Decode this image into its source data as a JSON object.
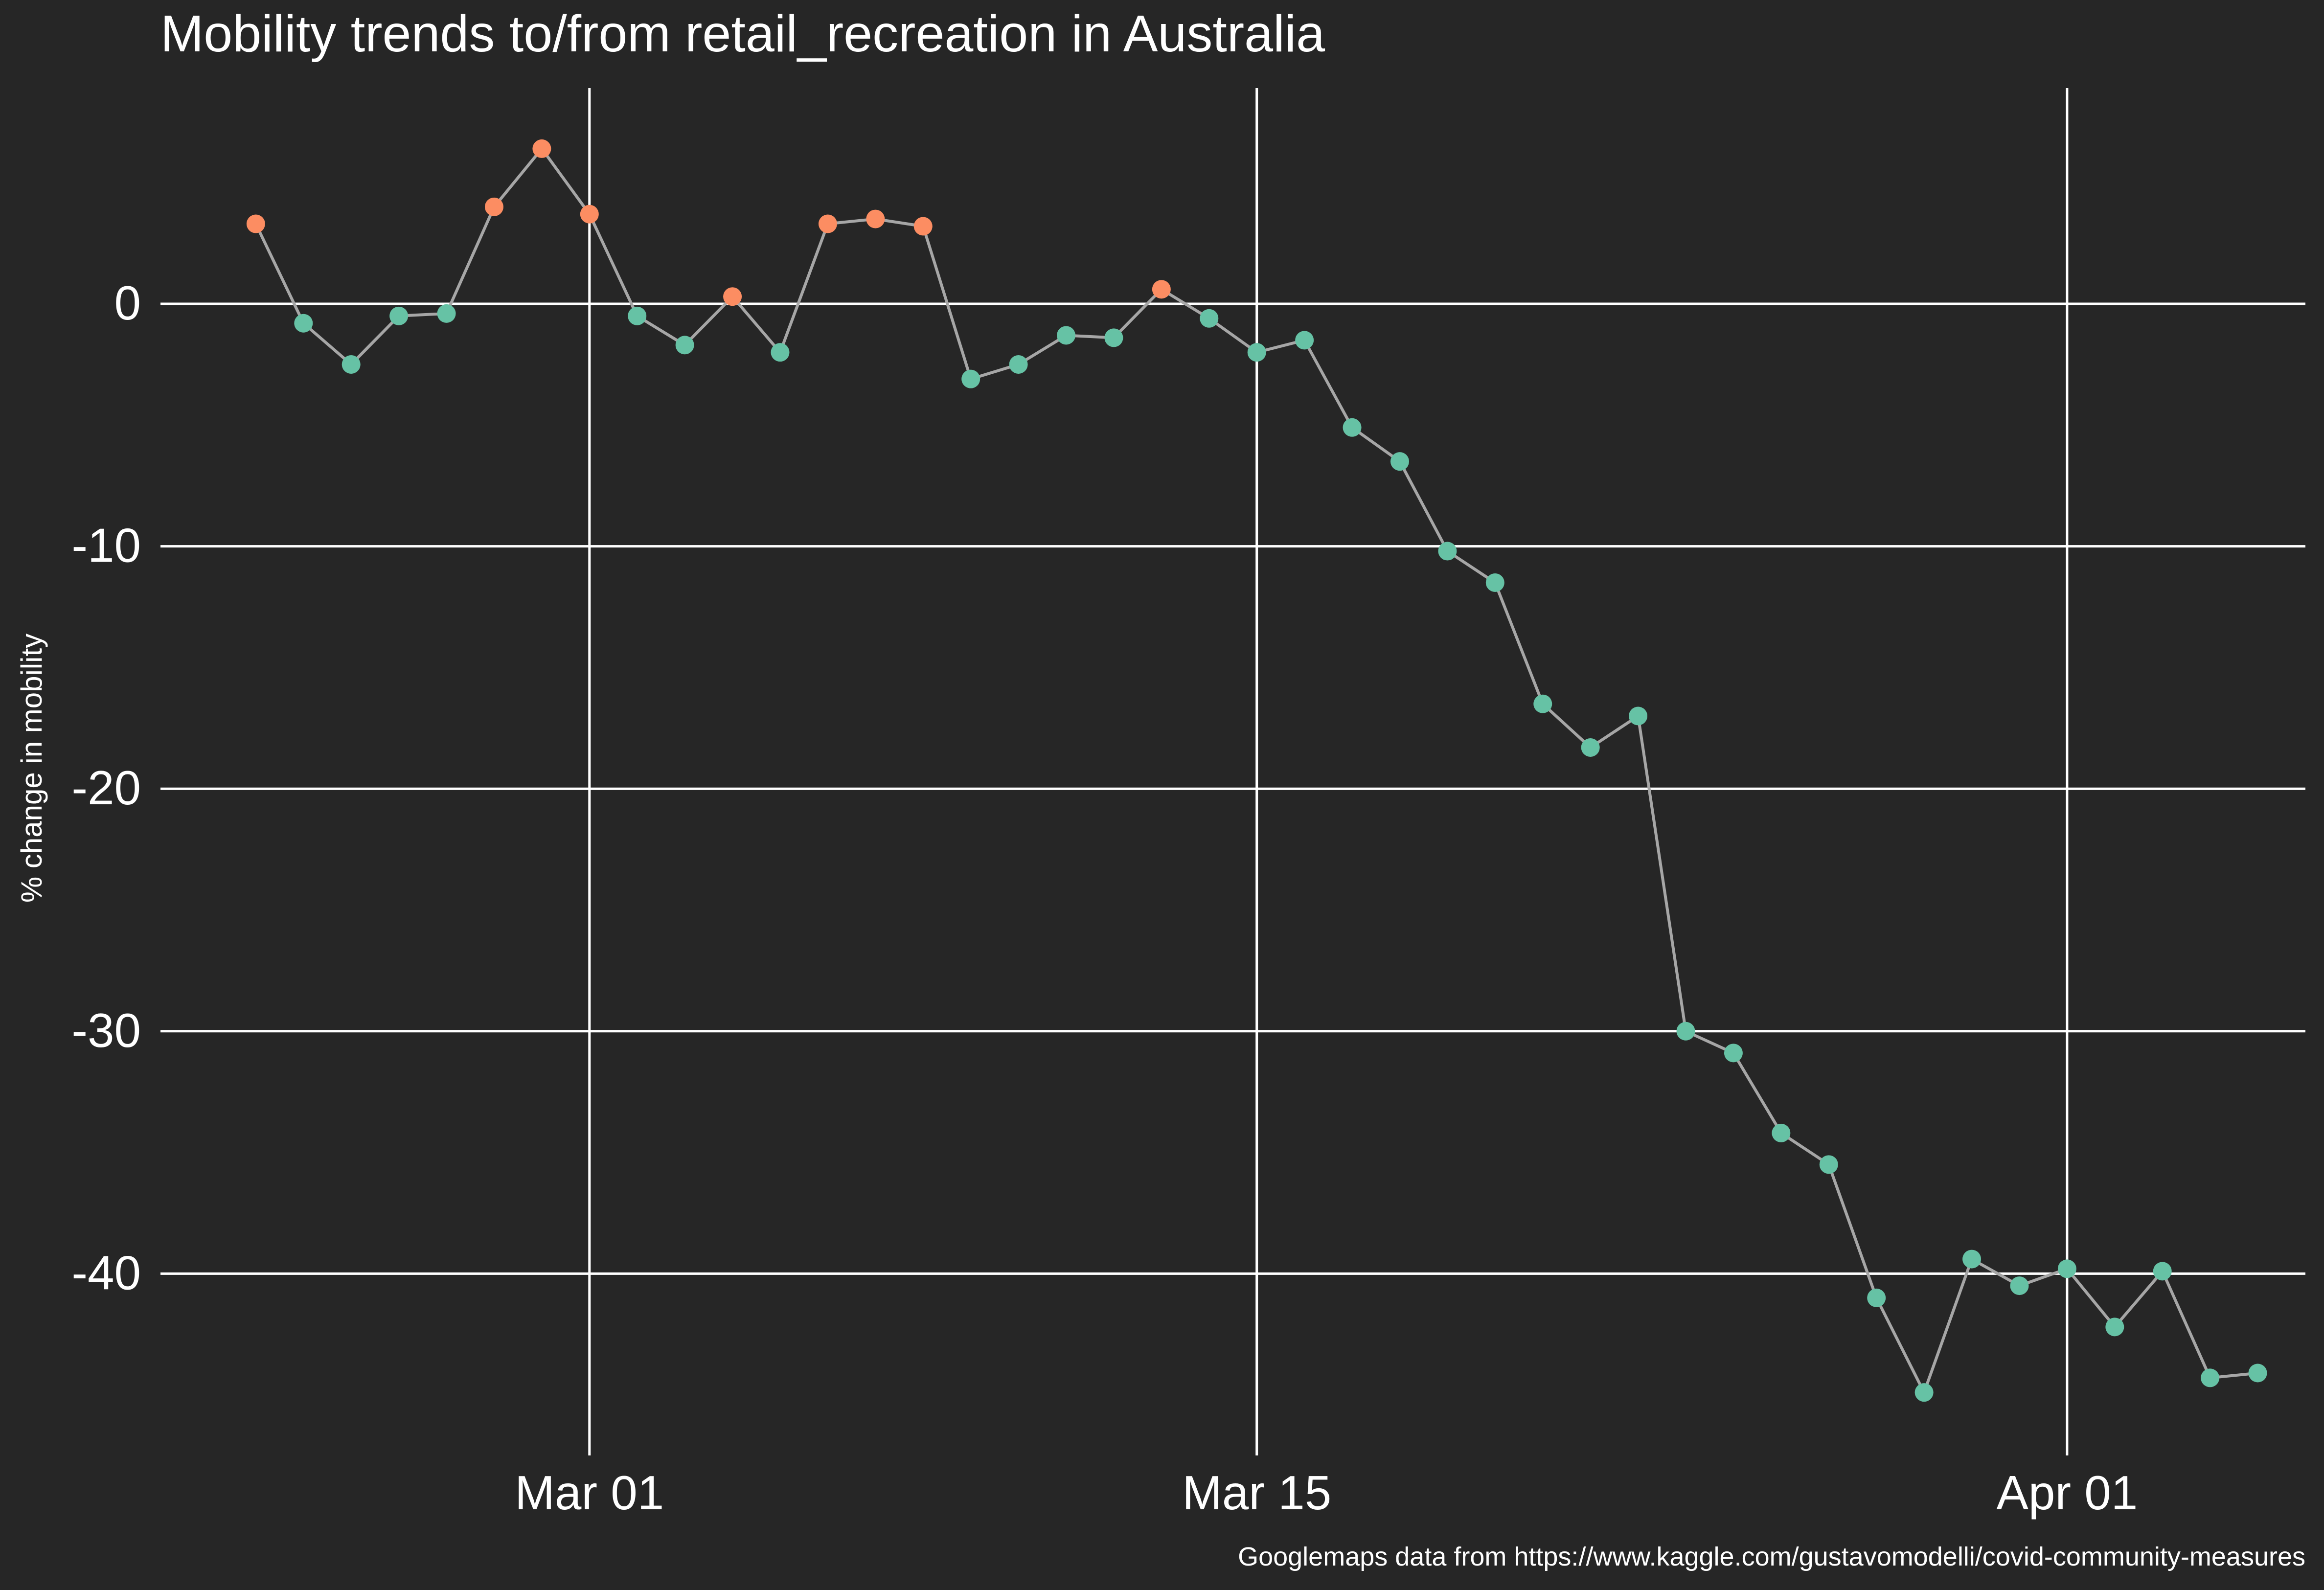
{
  "chart_data": {
    "type": "line",
    "title": "Mobility trends to/from retail_recreation in Australia",
    "xlabel": "",
    "ylabel": "% change in mobility",
    "caption": "Googlemaps data from https://www.kaggle.com/gustavomodelli/covid-community-measures",
    "x_ticks": [
      "Mar 01",
      "Mar 15",
      "Apr 01"
    ],
    "y_ticks": [
      0,
      -10,
      -20,
      -30,
      -40
    ],
    "xlim": [
      "2020-02-21",
      "2020-04-06"
    ],
    "ylim": [
      -47.5,
      8.9
    ],
    "grid": true,
    "legend": "none",
    "colors": {
      "background": "#262626",
      "grid": "#ffffff",
      "line": "#a6a6a6",
      "positive_point": "#fc8d62",
      "negative_point": "#66c2a5",
      "text": "#ffffff"
    },
    "series": [
      {
        "x": [
          "2020-02-23",
          "2020-02-24",
          "2020-02-25",
          "2020-02-26",
          "2020-02-27",
          "2020-02-28",
          "2020-02-29",
          "2020-03-01",
          "2020-03-02",
          "2020-03-03",
          "2020-03-04",
          "2020-03-05",
          "2020-03-06",
          "2020-03-07",
          "2020-03-08",
          "2020-03-09",
          "2020-03-10",
          "2020-03-11",
          "2020-03-12",
          "2020-03-13",
          "2020-03-14",
          "2020-03-15",
          "2020-03-16",
          "2020-03-17",
          "2020-03-18",
          "2020-03-19",
          "2020-03-20",
          "2020-03-21",
          "2020-03-22",
          "2020-03-23",
          "2020-03-24",
          "2020-03-25",
          "2020-03-26",
          "2020-03-27",
          "2020-03-28",
          "2020-03-29",
          "2020-03-30",
          "2020-03-31",
          "2020-04-01",
          "2020-04-02",
          "2020-04-03",
          "2020-04-04",
          "2020-04-05"
        ],
        "values": [
          3.3,
          -0.8,
          -2.5,
          -0.5,
          -0.4,
          4.0,
          6.4,
          3.7,
          -0.5,
          -1.7,
          0.3,
          -2.0,
          3.3,
          3.5,
          3.2,
          -3.1,
          -2.5,
          -1.3,
          -1.4,
          0.6,
          -0.6,
          -2.0,
          -1.5,
          -5.1,
          -6.5,
          -10.2,
          -11.5,
          -16.5,
          -18.3,
          -17.0,
          -30.0,
          -30.9,
          -34.2,
          -35.5,
          -41.0,
          -44.9,
          -39.4,
          -40.5,
          -39.8,
          -42.2,
          -39.9,
          -44.3,
          -44.1
        ]
      }
    ]
  }
}
